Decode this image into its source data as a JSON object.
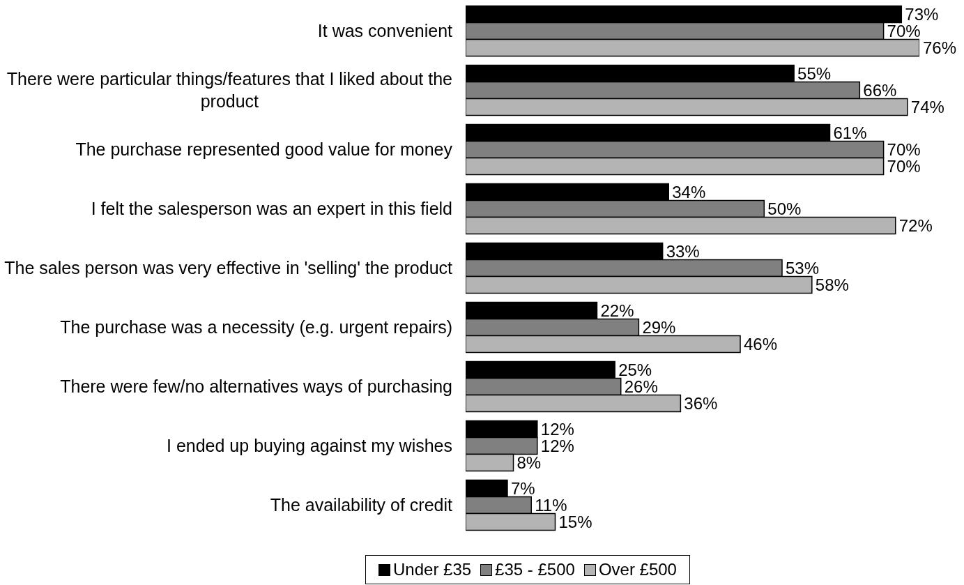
{
  "chart_data": {
    "type": "bar",
    "orientation": "horizontal",
    "tick_labels": "y",
    "legend": "bottom",
    "grid": false,
    "categories": [
      "It was convenient",
      "There were particular things/features that I liked about the product",
      "The purchase represented good value for money",
      "I felt the salesperson was an expert in this field",
      "The sales person was very effective in 'selling' the product",
      "The purchase was a necessity (e.g. urgent repairs)",
      "There were few/no alternatives ways of purchasing",
      "I ended up buying against my wishes",
      "The availability of credit"
    ],
    "series": [
      {
        "name": "Under £35",
        "color": "#000000",
        "values": [
          73,
          55,
          61,
          34,
          33,
          22,
          25,
          12,
          7
        ],
        "value_labels": [
          "73%",
          "55%",
          "61%",
          "34%",
          "33%",
          "22%",
          "25%",
          "12%",
          "7%"
        ]
      },
      {
        "name": "£35 - £500",
        "color": "#808080",
        "values": [
          70,
          66,
          70,
          50,
          53,
          29,
          26,
          12,
          11
        ],
        "value_labels": [
          "70%",
          "66%",
          "70%",
          "50%",
          "53%",
          "29%",
          "26%",
          "12%",
          "11%"
        ]
      },
      {
        "name": "Over £500",
        "color": "#b4b4b4",
        "values": [
          76,
          74,
          70,
          72,
          58,
          46,
          36,
          8,
          15
        ],
        "value_labels": [
          "76%",
          "74%",
          "70%",
          "72%",
          "58%",
          "46%",
          "36%",
          "8%",
          "15%"
        ]
      }
    ]
  }
}
